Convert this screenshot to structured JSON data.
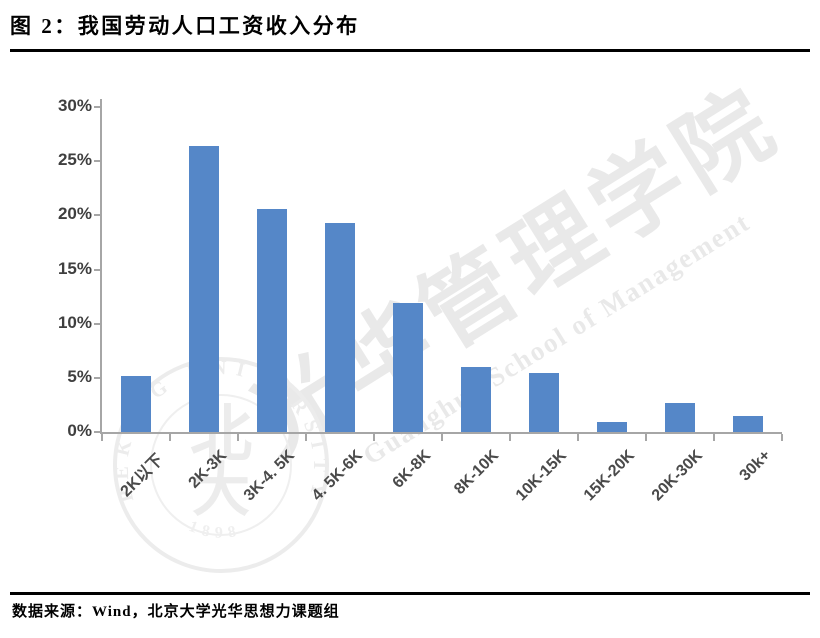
{
  "figure": {
    "title": "图 2：我国劳动人口工资收入分布",
    "source": "数据来源：Wind，北京大学光华思想力课题组"
  },
  "watermark": {
    "script_cn": "光华管理学院",
    "script_en": "Guanghua School of Management",
    "seal_ring_text": "PEKING UNIVERSITY",
    "seal_year": "1898",
    "seal_center_top": "北",
    "seal_center_bottom": "大"
  },
  "chart_data": {
    "type": "bar",
    "title": "图 2：我国劳动人口工资收入分布",
    "categories": [
      "2K以下",
      "2K-3K",
      "3K-4. 5K",
      "4. 5K-6K",
      "6K-8K",
      "8K-10K",
      "10K-15K",
      "15K-20K",
      "20K-30K",
      "30k+"
    ],
    "values": [
      5.2,
      26.4,
      20.6,
      19.3,
      11.9,
      6.0,
      5.4,
      0.9,
      2.7,
      1.5
    ],
    "value_unit": "%",
    "xlabel": "",
    "ylabel": "",
    "ylim": [
      0,
      30
    ],
    "ytick_step": 5,
    "yticks": [
      "0%",
      "5%",
      "10%",
      "15%",
      "20%",
      "25%",
      "30%"
    ],
    "grid": false,
    "legend": null,
    "bar_color": "#5587c8",
    "axis_color": "#a6a6a6",
    "tick_label_color": "#3f3f3f"
  }
}
